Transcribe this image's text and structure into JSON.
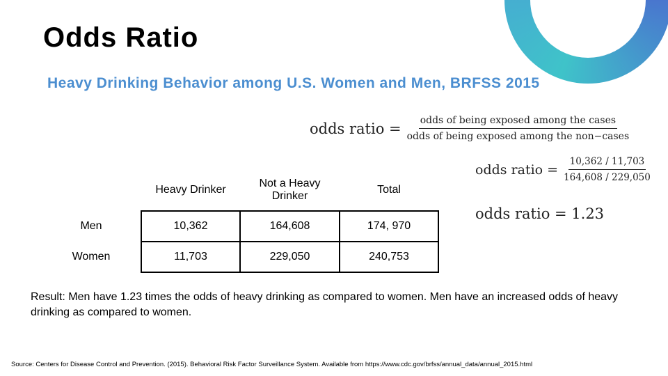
{
  "slide": {
    "title": "Odds Ratio",
    "subtitle": "Heavy Drinking Behavior among U.S. Women and Men, BRFSS 2015"
  },
  "formulas": {
    "general": {
      "lhs": "odds ratio =",
      "numerator": "odds of being exposed among the cases",
      "denominator": "odds of being exposed among the non−cases"
    },
    "computed": {
      "lhs": "odds ratio =",
      "numerator": "10,362 / 11,703",
      "denominator": "164,608 / 229,050"
    },
    "result": "odds ratio = 1.23"
  },
  "table": {
    "headers": [
      "",
      "Heavy Drinker",
      "Not a Heavy Drinker",
      "Total"
    ],
    "rows": [
      {
        "label": "Men",
        "cells": [
          "10,362",
          "164,608",
          "174, 970"
        ]
      },
      {
        "label": "Women",
        "cells": [
          "11,703",
          "229,050",
          "240,753"
        ]
      }
    ]
  },
  "result_text": "Result: Men have 1.23 times the odds of heavy drinking as compared to women. Men have an increased odds of heavy drinking as compared to women.",
  "source_text": "Source: Centers for Disease Control and Prevention. (2015). Behavioral Risk Factor Surveillance System.  Available from https://www.cdc.gov/brfss/annual_data/annual_2015.html",
  "colors": {
    "subtitle": "#4b8ed0",
    "ring_teal": "#3fc3c9",
    "ring_blue": "#4a6fcf"
  }
}
